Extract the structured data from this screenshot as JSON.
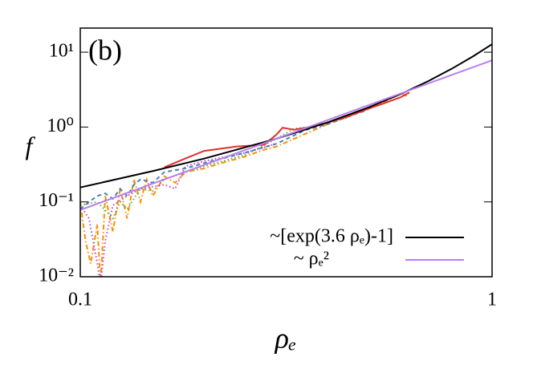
{
  "chart_data": {
    "type": "line",
    "annotation": "(b)",
    "xlabel": "ρₑ",
    "ylabel": "f",
    "xlog": true,
    "ylog": true,
    "xlim": [
      0.1,
      1
    ],
    "ylim": [
      0.01,
      21
    ],
    "xticks": [
      0.1,
      1
    ],
    "yticks": [
      {
        "value": 0.01,
        "label": "10⁻²"
      },
      {
        "value": 0.1,
        "label": "10⁻¹"
      },
      {
        "value": 1,
        "label": "10⁰"
      },
      {
        "value": 10,
        "label": "10¹"
      }
    ],
    "legend": "lower right",
    "series": [
      {
        "color": "#ff8c00",
        "style": "dashdot",
        "x": [
          0.1,
          0.103,
          0.106,
          0.11,
          0.112,
          0.115,
          0.12,
          0.125,
          0.13,
          0.135,
          0.14,
          0.145,
          0.15,
          0.16,
          0.17,
          0.18,
          0.2,
          0.22,
          0.25,
          0.28,
          0.3,
          0.35,
          0.4,
          0.45,
          0.5,
          0.55,
          0.6,
          0.62
        ],
        "values": [
          0.1,
          0.03,
          0.015,
          0.05,
          0.008,
          0.12,
          0.04,
          0.15,
          0.06,
          0.2,
          0.1,
          0.2,
          0.12,
          0.22,
          0.18,
          0.25,
          0.28,
          0.33,
          0.4,
          0.5,
          0.55,
          0.8,
          1.1,
          1.4,
          1.8,
          2.2,
          2.8,
          2.6
        ]
      },
      {
        "color": "#c03fc0",
        "style": "dotted",
        "x": [
          0.1,
          0.105,
          0.11,
          0.112,
          0.115,
          0.12,
          0.13,
          0.14,
          0.15,
          0.16,
          0.17,
          0.18,
          0.2,
          0.25,
          0.3
        ],
        "values": [
          0.09,
          0.06,
          0.015,
          0.008,
          0.03,
          0.09,
          0.12,
          0.15,
          0.16,
          0.17,
          0.15,
          0.3,
          0.35,
          0.45,
          0.6
        ]
      },
      {
        "color": "#6aaa3a",
        "style": "dotted",
        "x": [
          0.1,
          0.11,
          0.12,
          0.125,
          0.13,
          0.14,
          0.15,
          0.16,
          0.18,
          0.2,
          0.25,
          0.3,
          0.33,
          0.36,
          0.4,
          0.45
        ],
        "values": [
          0.09,
          0.1,
          0.06,
          0.1,
          0.08,
          0.15,
          0.14,
          0.2,
          0.25,
          0.3,
          0.42,
          0.7,
          0.95,
          1.0,
          1.15,
          1.35
        ]
      },
      {
        "color": "#4a7fb0",
        "style": "dashed",
        "x": [
          0.1,
          0.105,
          0.11,
          0.115,
          0.12,
          0.125,
          0.13,
          0.135,
          0.14,
          0.15,
          0.16,
          0.18,
          0.2,
          0.25,
          0.3,
          0.35,
          0.4,
          0.45,
          0.5
        ],
        "values": [
          0.08,
          0.1,
          0.12,
          0.13,
          0.11,
          0.15,
          0.12,
          0.17,
          0.2,
          0.18,
          0.25,
          0.28,
          0.33,
          0.45,
          0.6,
          0.9,
          1.1,
          1.4,
          1.7
        ]
      },
      {
        "color": "#e0302a",
        "style": "solid",
        "x": [
          0.16,
          0.18,
          0.2,
          0.24,
          0.28,
          0.3,
          0.31,
          0.33,
          0.36,
          0.4,
          0.45,
          0.5,
          0.55,
          0.6,
          0.63
        ],
        "values": [
          0.29,
          0.38,
          0.48,
          0.55,
          0.58,
          0.8,
          0.98,
          0.92,
          1.0,
          1.15,
          1.4,
          1.75,
          2.1,
          2.5,
          2.9
        ]
      },
      {
        "name": "~[exp(3.6 ρₑ)-1]",
        "color": "#000000",
        "style": "solid",
        "x": [
          0.1,
          0.15,
          0.2,
          0.3,
          0.4,
          0.5,
          0.6,
          0.7,
          0.8,
          0.9,
          1
        ],
        "values": [
          0.156,
          0.258,
          0.379,
          0.7,
          1.16,
          1.82,
          2.76,
          4.11,
          6.05,
          8.83,
          12.8
        ]
      },
      {
        "name": "~ ρₑ²",
        "color": "#b77ff0",
        "style": "solid",
        "x": [
          0.1,
          0.2,
          0.5,
          1
        ],
        "values": [
          0.078,
          0.312,
          1.95,
          7.8
        ]
      }
    ]
  }
}
